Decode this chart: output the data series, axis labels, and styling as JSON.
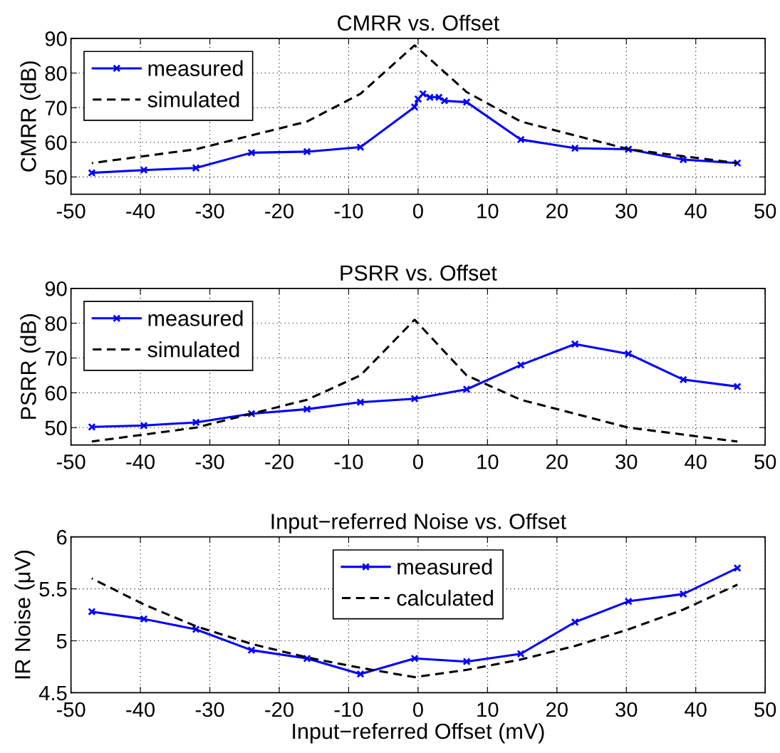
{
  "chart_data": [
    {
      "type": "line",
      "title": "CMRR vs. Offset",
      "ylabel": "CMRR (dB)",
      "xlim": [
        -50,
        50
      ],
      "xticks": [
        -50,
        -40,
        -30,
        -20,
        -10,
        0,
        10,
        20,
        30,
        40,
        50
      ],
      "ylim": [
        45,
        90
      ],
      "yticks": [
        50,
        60,
        70,
        80,
        90
      ],
      "grid": true,
      "legend": "top left",
      "series": [
        {
          "name": "measured",
          "color": "#0000ff",
          "marker": "cross",
          "line_style": "solid",
          "x": [
            -47,
            -39.5,
            -32,
            -24,
            -16,
            -8.3,
            -0.5,
            0,
            0.7,
            1.7,
            3,
            3.8,
            7,
            14.8,
            22.6,
            30.3,
            38.2,
            46
          ],
          "values": [
            51.2,
            52,
            52.6,
            57,
            57.3,
            58.6,
            70.2,
            72.5,
            74,
            73,
            73,
            72,
            71.6,
            60.8,
            58.3,
            58,
            55,
            54
          ]
        },
        {
          "name": "simulated",
          "color": "#000000",
          "marker": "none",
          "line_style": "dashed",
          "x": [
            -47,
            -39.5,
            -32,
            -24,
            -16,
            -8.3,
            -0.5,
            7,
            14.8,
            22.6,
            30.3,
            38.2,
            46
          ],
          "values": [
            54,
            56,
            58,
            62,
            66,
            74,
            88,
            74.5,
            66,
            62,
            58,
            56,
            54
          ]
        }
      ]
    },
    {
      "type": "line",
      "title": "PSRR vs. Offset",
      "ylabel": "PSRR (dB)",
      "xlim": [
        -50,
        50
      ],
      "xticks": [
        -50,
        -40,
        -30,
        -20,
        -10,
        0,
        10,
        20,
        30,
        40,
        50
      ],
      "ylim": [
        45,
        90
      ],
      "yticks": [
        50,
        60,
        70,
        80,
        90
      ],
      "grid": true,
      "legend": "top left",
      "series": [
        {
          "name": "measured",
          "color": "#0000ff",
          "marker": "cross",
          "line_style": "solid",
          "x": [
            -47,
            -39.5,
            -32,
            -24,
            -16,
            -8.3,
            -0.5,
            7,
            14.8,
            22.6,
            30.3,
            38.2,
            46
          ],
          "values": [
            50.2,
            50.6,
            51.5,
            54,
            55.3,
            57.3,
            58.3,
            61,
            68,
            74,
            71.2,
            63.8,
            61.8
          ]
        },
        {
          "name": "simulated",
          "color": "#000000",
          "marker": "none",
          "line_style": "dashed",
          "x": [
            -47,
            -39.5,
            -32,
            -24,
            -16,
            -8.3,
            -0.5,
            7,
            14.8,
            22.6,
            30.3,
            38.2,
            46
          ],
          "values": [
            46,
            48,
            50,
            54,
            58,
            65,
            81,
            65,
            58,
            54,
            50,
            48,
            46
          ]
        }
      ]
    },
    {
      "type": "line",
      "title": "Input−referred Noise vs. Offset",
      "xlabel": "Input−referred Offset (mV)",
      "ylabel": "IR Noise (μV)",
      "xlim": [
        -50,
        50
      ],
      "xticks": [
        -50,
        -40,
        -30,
        -20,
        -10,
        0,
        10,
        20,
        30,
        40,
        50
      ],
      "ylim": [
        4.5,
        6
      ],
      "yticks": [
        4.5,
        5,
        5.5,
        6
      ],
      "grid": true,
      "legend": "top",
      "series": [
        {
          "name": "measured",
          "color": "#0000ff",
          "marker": "cross",
          "line_style": "solid",
          "x": [
            -47,
            -39.5,
            -32,
            -24,
            -16,
            -8.3,
            -0.5,
            7,
            14.8,
            22.6,
            30.3,
            38.2,
            46
          ],
          "values": [
            5.28,
            5.21,
            5.11,
            4.91,
            4.83,
            4.68,
            4.83,
            4.8,
            4.875,
            5.18,
            5.38,
            5.45,
            5.7
          ]
        },
        {
          "name": "calculated",
          "color": "#000000",
          "marker": "none",
          "line_style": "dashed",
          "x": [
            -47,
            -39.5,
            -32,
            -24,
            -16,
            -8.3,
            -0.5,
            7,
            14.8,
            22.6,
            30.3,
            38.2,
            46
          ],
          "values": [
            5.6,
            5.35,
            5.14,
            4.97,
            4.84,
            4.74,
            4.65,
            4.72,
            4.82,
            4.95,
            5.11,
            5.3,
            5.54
          ]
        }
      ]
    }
  ]
}
